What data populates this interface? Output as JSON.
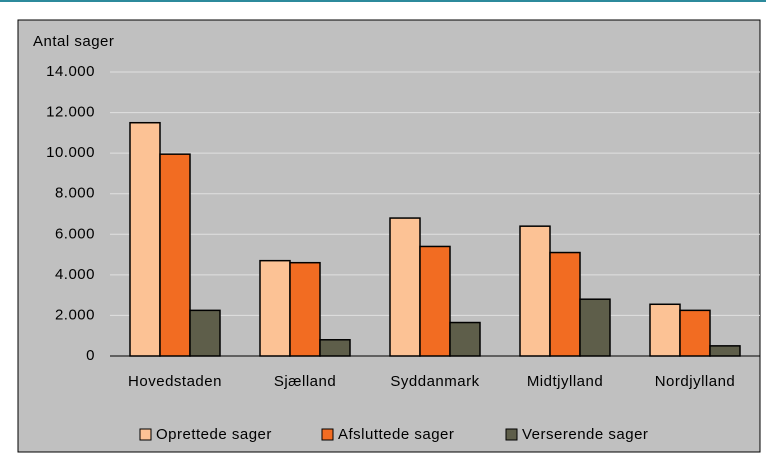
{
  "chart_data": {
    "type": "bar",
    "y_axis_label": "Antal sager",
    "categories": [
      "Hovedstaden",
      "Sjælland",
      "Syddanmark",
      "Midtjylland",
      "Nordjylland"
    ],
    "series": [
      {
        "name": "Oprettede sager",
        "color": "#fcc295",
        "values": [
          11500,
          4700,
          6800,
          6400,
          2550
        ]
      },
      {
        "name": "Afsluttede sager",
        "color": "#f26c22",
        "values": [
          9950,
          4600,
          5400,
          5100,
          2250
        ]
      },
      {
        "name": "Verserende sager",
        "color": "#5e5e4a",
        "values": [
          2250,
          800,
          1650,
          2800,
          500
        ]
      }
    ],
    "ylim": [
      0,
      14000
    ],
    "yticks": [
      0,
      {
        "value": 2000,
        "label": "2.000"
      },
      {
        "value": 4000,
        "label": "4.000"
      },
      {
        "value": 6000,
        "label": "6.000"
      },
      {
        "value": 8000,
        "label": "8.000"
      },
      {
        "value": 10000,
        "label": "10.000"
      },
      {
        "value": 12000,
        "label": "12.000"
      },
      {
        "value": 14000,
        "label": "14.000"
      }
    ],
    "grid": true,
    "legend": "bottom"
  }
}
